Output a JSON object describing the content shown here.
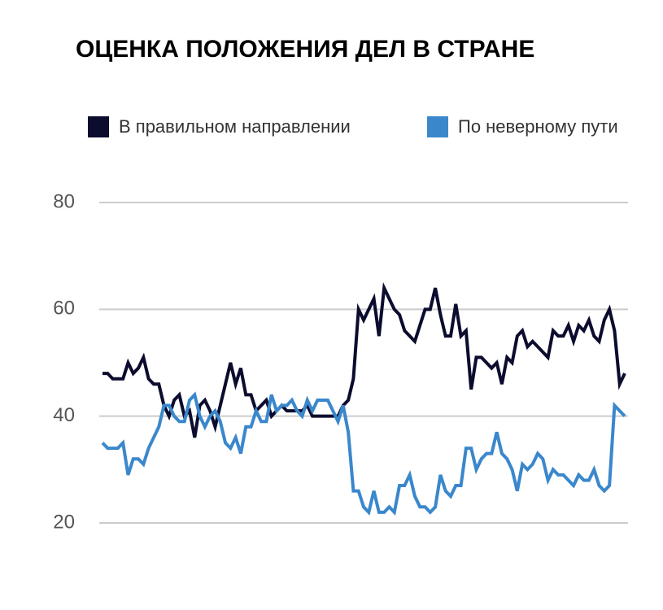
{
  "chart_data": {
    "type": "line",
    "title": "ОЦЕНКА ПОЛОЖЕНИЯ ДЕЛ В СТРАНЕ",
    "series": [
      {
        "name": "В правильном направлении",
        "color": "#0b0c2e",
        "values": [
          48,
          48,
          47,
          47,
          47,
          50,
          48,
          49,
          51,
          47,
          46,
          46,
          42,
          40,
          43,
          44,
          40,
          41,
          36,
          42,
          43,
          41,
          38,
          42,
          46,
          50,
          46,
          49,
          44,
          44,
          41,
          42,
          43,
          40,
          41,
          42,
          41,
          41,
          41,
          41,
          42,
          40,
          40,
          40,
          40,
          40,
          40,
          42,
          43,
          47,
          60,
          58,
          60,
          62,
          55,
          64,
          62,
          60,
          59,
          56,
          55,
          54,
          57,
          60,
          60,
          64,
          59,
          55,
          55,
          61,
          55,
          56,
          45,
          51,
          51,
          50,
          49,
          50,
          46,
          51,
          50,
          55,
          56,
          53,
          54,
          53,
          52,
          51,
          56,
          55,
          55,
          57,
          54,
          57,
          56,
          58,
          55,
          54,
          58,
          60,
          56,
          46,
          48
        ]
      },
      {
        "name": "По неверному пути",
        "color": "#3a87cc",
        "values": [
          35,
          34,
          34,
          34,
          35,
          29,
          32,
          32,
          31,
          34,
          36,
          38,
          42,
          42,
          40,
          39,
          39,
          43,
          44,
          40,
          38,
          40,
          41,
          39,
          35,
          34,
          36,
          33,
          38,
          38,
          41,
          39,
          39,
          44,
          41,
          42,
          42,
          43,
          41,
          40,
          43,
          41,
          43,
          43,
          43,
          41,
          39,
          42,
          37,
          26,
          26,
          23,
          22,
          26,
          22,
          22,
          23,
          22,
          27,
          27,
          29,
          25,
          23,
          23,
          22,
          23,
          29,
          26,
          25,
          27,
          27,
          34,
          34,
          30,
          32,
          33,
          33,
          37,
          33,
          32,
          30,
          26,
          31,
          30,
          31,
          33,
          32,
          28,
          30,
          29,
          29,
          28,
          27,
          29,
          28,
          28,
          30,
          27,
          26,
          27,
          42,
          41,
          40
        ]
      }
    ],
    "ylim": [
      20,
      80
    ],
    "yticks": [
      20,
      40,
      60,
      80
    ],
    "grid": true
  }
}
